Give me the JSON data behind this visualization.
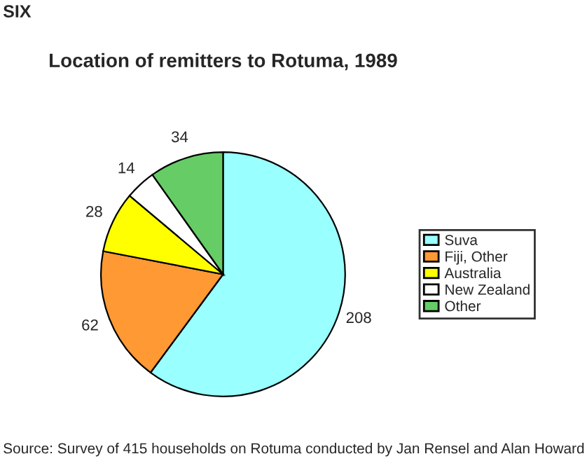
{
  "chart_data": {
    "type": "pie",
    "title": "Location of remitters to Rotuma, 1989",
    "categories": [
      "Suva",
      "Fiji, Other",
      "Australia",
      "New Zealand",
      "Other"
    ],
    "values": [
      208,
      62,
      28,
      14,
      34
    ],
    "colors": [
      "#99ffff",
      "#ff9933",
      "#ffff00",
      "#ffffff",
      "#66cc66"
    ],
    "data_labels": true,
    "legend": "right",
    "annotations": [
      "SIX",
      "Source: Survey of 415 households on Rotuma conducted by Jan Rensel and Alan Howard"
    ]
  }
}
